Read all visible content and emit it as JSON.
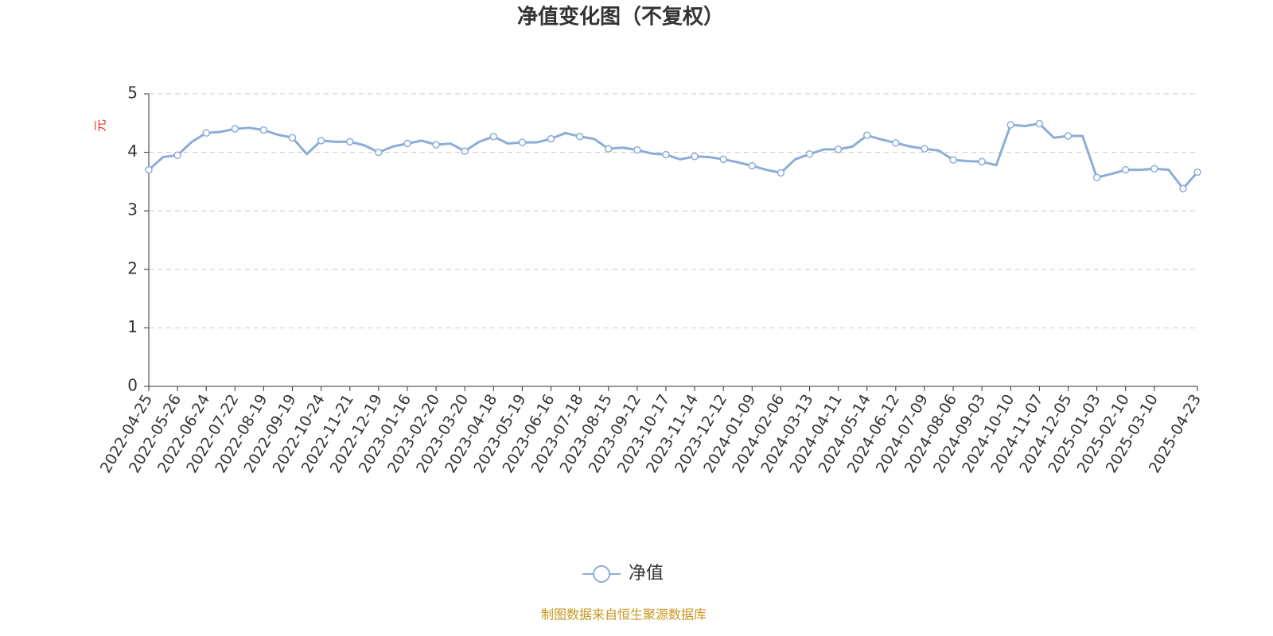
{
  "chart_data": {
    "type": "line",
    "title": "净值变化图（不复权）",
    "y_label": "元",
    "source": "制图数据来自恒生聚源数据库",
    "categories": [
      "2022-04-25",
      null,
      "2022-05-26",
      null,
      "2022-06-24",
      null,
      "2022-07-22",
      null,
      "2022-08-19",
      null,
      "2022-09-19",
      null,
      "2022-10-24",
      null,
      "2022-11-21",
      null,
      "2022-12-19",
      null,
      "2023-01-16",
      null,
      "2023-02-20",
      null,
      "2023-03-20",
      null,
      "2023-04-18",
      null,
      "2023-05-19",
      null,
      "2023-06-16",
      null,
      "2023-07-18",
      null,
      "2023-08-15",
      null,
      "2023-09-12",
      null,
      "2023-10-17",
      null,
      "2023-11-14",
      null,
      "2023-12-12",
      null,
      "2024-01-09",
      null,
      "2024-02-06",
      null,
      "2024-03-13",
      null,
      "2024-04-11",
      null,
      "2024-05-14",
      null,
      "2024-06-12",
      null,
      "2024-07-09",
      null,
      "2024-08-06",
      null,
      "2024-09-03",
      null,
      "2024-10-10",
      null,
      "2024-11-07",
      null,
      "2024-12-05",
      null,
      "2025-01-03",
      null,
      "2025-02-10",
      null,
      "2025-03-10",
      null,
      null,
      "2025-04-23"
    ],
    "series": [
      {
        "name": "净值",
        "color": "#8cadd9",
        "values": [
          3.7,
          3.92,
          3.95,
          4.18,
          4.33,
          4.35,
          4.4,
          4.42,
          4.38,
          4.3,
          4.25,
          3.97,
          4.2,
          4.18,
          4.18,
          4.12,
          4.0,
          4.1,
          4.15,
          4.2,
          4.13,
          4.15,
          4.02,
          4.18,
          4.27,
          4.15,
          4.17,
          4.17,
          4.23,
          4.33,
          4.27,
          4.23,
          4.06,
          4.08,
          4.04,
          3.98,
          3.96,
          3.88,
          3.93,
          3.92,
          3.88,
          3.83,
          3.77,
          3.7,
          3.65,
          3.88,
          3.97,
          4.05,
          4.05,
          4.1,
          4.29,
          4.22,
          4.16,
          4.1,
          4.06,
          4.03,
          3.87,
          3.85,
          3.84,
          3.78,
          4.47,
          4.45,
          4.49,
          4.25,
          4.28,
          4.28,
          3.57,
          3.63,
          3.7,
          3.7,
          3.72,
          3.7,
          3.38,
          3.66
        ]
      }
    ],
    "ylim": [
      0,
      5
    ],
    "yticks": [
      0,
      1,
      2,
      3,
      4,
      5
    ],
    "grid": true
  }
}
